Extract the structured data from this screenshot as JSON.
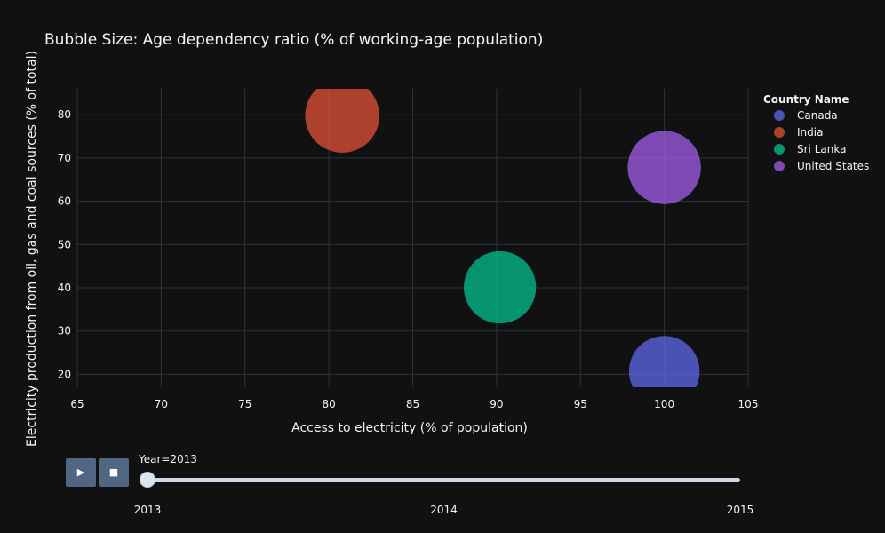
{
  "chart_data": {
    "type": "scatter",
    "title": "Bubble Size: Age dependency ratio (% of working-age population)",
    "xlabel": "Access to electricity (% of population)",
    "ylabel": "Electricity production from oil, gas and coal sources (% of total)",
    "xlim": [
      65,
      105
    ],
    "ylim": [
      17,
      86
    ],
    "xticks": [
      65,
      70,
      75,
      80,
      85,
      90,
      95,
      100,
      105
    ],
    "yticks": [
      20,
      30,
      40,
      50,
      60,
      70,
      80
    ],
    "grid": true,
    "legend_title": "Country Name",
    "legend_position": "right",
    "series": [
      {
        "name": "Canada",
        "color": "#636efa",
        "x": 100,
        "y": 20.7,
        "size": 47.3
      },
      {
        "name": "India",
        "color": "#ef553b",
        "x": 80.8,
        "y": 79.8,
        "size": 52.2
      },
      {
        "name": "Sri Lanka",
        "color": "#00cc96",
        "x": 90.2,
        "y": 40.1,
        "size": 49.5
      },
      {
        "name": "United States",
        "color": "#ab63fa",
        "x": 100,
        "y": 67.8,
        "size": 50.9
      }
    ]
  },
  "controls": {
    "play_icon": "▶",
    "stop_icon": "■",
    "slider_prefix": "Year=2013",
    "slider_current": "2013",
    "slider_steps": [
      "2013",
      "2014",
      "2015"
    ]
  }
}
